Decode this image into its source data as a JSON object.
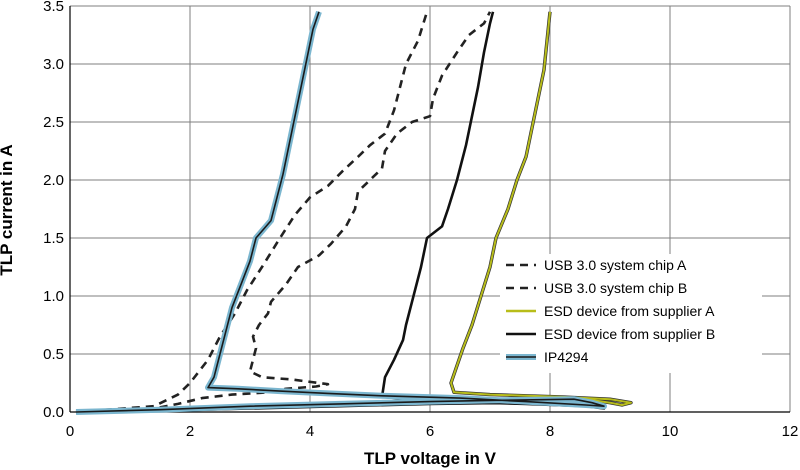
{
  "chart_data": {
    "type": "line",
    "xlabel": "TLP voltage in V",
    "ylabel": "TLP current in A",
    "xlim": [
      0,
      12
    ],
    "ylim": [
      0,
      3.5
    ],
    "x_ticks": [
      "0",
      "2",
      "4",
      "6",
      "8",
      "10",
      "12"
    ],
    "y_ticks": [
      "0.0",
      "0.5",
      "1.0",
      "1.5",
      "2.0",
      "2.5",
      "3.0",
      "3.5"
    ],
    "grid": true,
    "legend_position": "right",
    "series": [
      {
        "name": "USB 3.0 system chip A",
        "style": "dashed",
        "color": "#222222",
        "points": [
          [
            0.1,
            0.0
          ],
          [
            1.3,
            0.02
          ],
          [
            1.8,
            0.07
          ],
          [
            2.2,
            0.12
          ],
          [
            2.7,
            0.15
          ],
          [
            3.3,
            0.17
          ],
          [
            3.6,
            0.2
          ],
          [
            4.1,
            0.22
          ],
          [
            4.3,
            0.24
          ],
          [
            3.7,
            0.28
          ],
          [
            3.2,
            0.3
          ],
          [
            3.0,
            0.35
          ],
          [
            3.05,
            0.45
          ],
          [
            3.1,
            0.55
          ],
          [
            3.05,
            0.65
          ],
          [
            3.15,
            0.75
          ],
          [
            3.3,
            0.85
          ],
          [
            3.35,
            0.95
          ],
          [
            3.6,
            1.1
          ],
          [
            3.8,
            1.25
          ],
          [
            4.15,
            1.35
          ],
          [
            4.35,
            1.45
          ],
          [
            4.6,
            1.6
          ],
          [
            4.75,
            1.75
          ],
          [
            4.8,
            1.9
          ],
          [
            5.0,
            2.0
          ],
          [
            5.2,
            2.1
          ],
          [
            5.25,
            2.25
          ],
          [
            5.45,
            2.4
          ],
          [
            5.7,
            2.5
          ],
          [
            6.0,
            2.55
          ],
          [
            6.05,
            2.7
          ],
          [
            6.2,
            2.9
          ],
          [
            6.45,
            3.1
          ],
          [
            6.65,
            3.25
          ],
          [
            6.9,
            3.35
          ],
          [
            7.0,
            3.45
          ]
        ]
      },
      {
        "name": "USB 3.0 system chip B",
        "style": "dashed",
        "color": "#222222",
        "points": [
          [
            0.1,
            0.0
          ],
          [
            1.4,
            0.05
          ],
          [
            1.8,
            0.15
          ],
          [
            2.0,
            0.25
          ],
          [
            2.3,
            0.45
          ],
          [
            2.5,
            0.65
          ],
          [
            2.75,
            0.85
          ],
          [
            2.95,
            1.05
          ],
          [
            3.2,
            1.25
          ],
          [
            3.5,
            1.5
          ],
          [
            3.75,
            1.7
          ],
          [
            4.0,
            1.85
          ],
          [
            4.3,
            1.95
          ],
          [
            4.55,
            2.08
          ],
          [
            4.8,
            2.2
          ],
          [
            5.0,
            2.3
          ],
          [
            5.25,
            2.4
          ],
          [
            5.4,
            2.6
          ],
          [
            5.5,
            2.8
          ],
          [
            5.6,
            3.0
          ],
          [
            5.8,
            3.2
          ],
          [
            5.95,
            3.45
          ]
        ]
      },
      {
        "name": "ESD device from supplier A",
        "style": "solid",
        "color": "#b8bd1a",
        "points": [
          [
            0.1,
            0.0
          ],
          [
            1.5,
            0.02
          ],
          [
            3.0,
            0.04
          ],
          [
            4.5,
            0.06
          ],
          [
            6.0,
            0.08
          ],
          [
            7.5,
            0.1
          ],
          [
            8.6,
            0.11
          ],
          [
            9.0,
            0.08
          ],
          [
            9.2,
            0.06
          ],
          [
            9.35,
            0.08
          ],
          [
            9.0,
            0.11
          ],
          [
            8.2,
            0.13
          ],
          [
            7.0,
            0.15
          ],
          [
            6.4,
            0.17
          ],
          [
            6.35,
            0.25
          ],
          [
            6.45,
            0.4
          ],
          [
            6.55,
            0.55
          ],
          [
            6.7,
            0.75
          ],
          [
            6.85,
            1.0
          ],
          [
            7.0,
            1.25
          ],
          [
            7.1,
            1.5
          ],
          [
            7.3,
            1.75
          ],
          [
            7.45,
            2.0
          ],
          [
            7.6,
            2.2
          ],
          [
            7.7,
            2.45
          ],
          [
            7.8,
            2.7
          ],
          [
            7.9,
            2.95
          ],
          [
            7.95,
            3.2
          ],
          [
            8.0,
            3.45
          ]
        ]
      },
      {
        "name": "ESD device from supplier B",
        "style": "solid",
        "color": "#111111",
        "points": [
          [
            0.1,
            0.0
          ],
          [
            1.5,
            0.01
          ],
          [
            3.0,
            0.03
          ],
          [
            4.5,
            0.05
          ],
          [
            6.0,
            0.07
          ],
          [
            7.5,
            0.08
          ],
          [
            8.3,
            0.08
          ],
          [
            8.75,
            0.05
          ],
          [
            8.9,
            0.03
          ],
          [
            8.6,
            0.05
          ],
          [
            7.6,
            0.07
          ],
          [
            6.2,
            0.09
          ],
          [
            5.2,
            0.13
          ],
          [
            5.25,
            0.3
          ],
          [
            5.4,
            0.45
          ],
          [
            5.55,
            0.62
          ],
          [
            5.6,
            0.75
          ],
          [
            5.7,
            0.95
          ],
          [
            5.85,
            1.25
          ],
          [
            5.95,
            1.5
          ],
          [
            6.2,
            1.6
          ],
          [
            6.3,
            1.75
          ],
          [
            6.45,
            2.0
          ],
          [
            6.6,
            2.3
          ],
          [
            6.7,
            2.55
          ],
          [
            6.8,
            2.8
          ],
          [
            6.9,
            3.1
          ],
          [
            7.0,
            3.35
          ],
          [
            7.05,
            3.45
          ]
        ]
      },
      {
        "name": "IP4294",
        "style": "solid",
        "color": "#7bb6cf",
        "points": [
          [
            0.1,
            0.0
          ],
          [
            1.5,
            0.02
          ],
          [
            3.0,
            0.05
          ],
          [
            4.5,
            0.07
          ],
          [
            6.0,
            0.09
          ],
          [
            7.0,
            0.1
          ],
          [
            8.4,
            0.11
          ],
          [
            8.7,
            0.08
          ],
          [
            8.9,
            0.05
          ],
          [
            8.6,
            0.06
          ],
          [
            7.6,
            0.09
          ],
          [
            6.5,
            0.12
          ],
          [
            5.2,
            0.14
          ],
          [
            4.3,
            0.16
          ],
          [
            3.5,
            0.18
          ],
          [
            2.8,
            0.2
          ],
          [
            2.3,
            0.21
          ],
          [
            2.4,
            0.3
          ],
          [
            2.5,
            0.5
          ],
          [
            2.6,
            0.7
          ],
          [
            2.7,
            0.9
          ],
          [
            2.85,
            1.1
          ],
          [
            3.0,
            1.3
          ],
          [
            3.1,
            1.5
          ],
          [
            3.35,
            1.65
          ],
          [
            3.45,
            1.85
          ],
          [
            3.55,
            2.05
          ],
          [
            3.65,
            2.3
          ],
          [
            3.75,
            2.55
          ],
          [
            3.85,
            2.8
          ],
          [
            3.95,
            3.05
          ],
          [
            4.05,
            3.3
          ],
          [
            4.15,
            3.45
          ]
        ]
      }
    ]
  }
}
